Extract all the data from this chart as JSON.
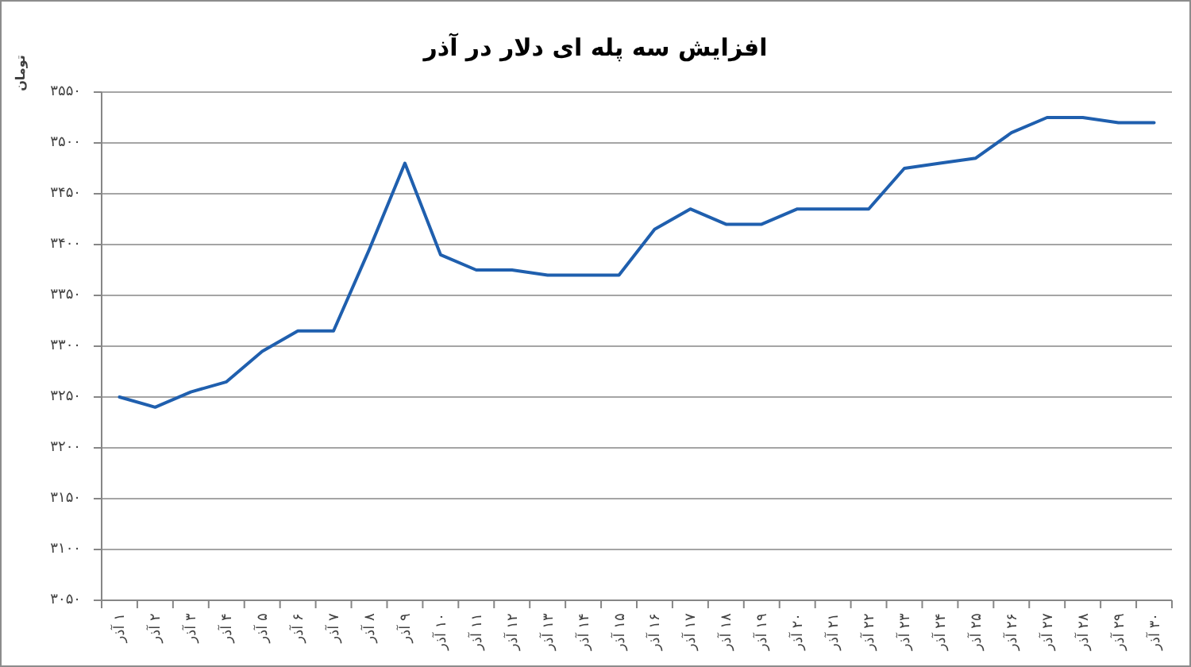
{
  "chart_data": {
    "type": "line",
    "title": "افزایش سه پله ای دلار در آذر",
    "ylabel": "تومان",
    "categories": [
      "۱ آذر",
      "۲ آذر",
      "۳ آذر",
      "۴ آذر",
      "۵ آذر",
      "۶ آذر",
      "۷ آذر",
      "۸ آذر",
      "۹ آذر",
      "۱۰ آذر",
      "۱۱ آذر",
      "۱۲ آذر",
      "۱۳ آذر",
      "۱۴ آذر",
      "۱۵ آذر",
      "۱۶ آذر",
      "۱۷ آذر",
      "۱۸ آذر",
      "۱۹ آذر",
      "۲۰ آذر",
      "۲۱ آذر",
      "۲۲ آذر",
      "۲۳ آذر",
      "۲۴ آذر",
      "۲۵ آذر",
      "۲۶ آذر",
      "۲۷ آذر",
      "۲۸ آذر",
      "۲۹ آذر",
      "۳۰ آذر"
    ],
    "series": [
      {
        "color": "#1f5fae",
        "values": [
          3250,
          3240,
          3255,
          3265,
          3295,
          3315,
          3315,
          3395,
          3480,
          3390,
          3375,
          3375,
          3370,
          3370,
          3370,
          3415,
          3435,
          3420,
          3420,
          3435,
          3435,
          3435,
          3475,
          3480,
          3485,
          3510,
          3525,
          3525,
          3520,
          3520
        ]
      }
    ],
    "ylim": [
      3050,
      3550
    ],
    "yticks": [
      {
        "value": 3050,
        "label": "۳۰۵۰"
      },
      {
        "value": 3100,
        "label": "۳۱۰۰"
      },
      {
        "value": 3150,
        "label": "۳۱۵۰"
      },
      {
        "value": 3200,
        "label": "۳۲۰۰"
      },
      {
        "value": 3250,
        "label": "۳۲۵۰"
      },
      {
        "value": 3300,
        "label": "۳۳۰۰"
      },
      {
        "value": 3350,
        "label": "۳۳۵۰"
      },
      {
        "value": 3400,
        "label": "۳۴۰۰"
      },
      {
        "value": 3450,
        "label": "۳۴۵۰"
      },
      {
        "value": 3500,
        "label": "۳۵۰۰"
      },
      {
        "value": 3550,
        "label": "۳۵۵۰"
      }
    ],
    "grid": "y",
    "marker": "none",
    "line_style": "solid"
  }
}
